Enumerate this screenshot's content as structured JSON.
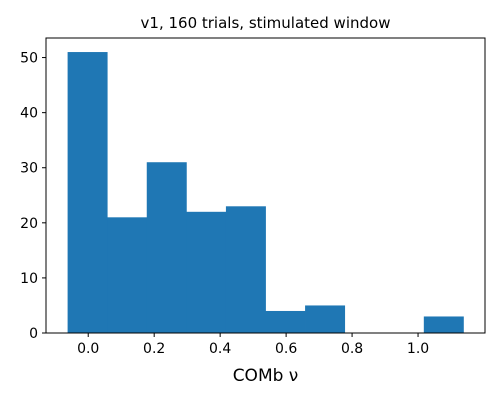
{
  "chart_data": {
    "type": "bar",
    "subtype": "histogram",
    "title": "v1, 160 trials, stimulated window",
    "xlabel": "COMb ν",
    "ylabel": "",
    "bin_edges": [
      -0.0625,
      0.0575,
      0.1775,
      0.2975,
      0.4175,
      0.5375,
      0.6575,
      0.7775,
      0.8975,
      1.0175,
      1.1375
    ],
    "values": [
      51,
      21,
      31,
      22,
      23,
      4,
      5,
      0,
      0,
      3
    ],
    "xlim": [
      -0.128,
      1.203
    ],
    "ylim": [
      0,
      53.55
    ],
    "xticks": [
      0.0,
      0.2,
      0.4,
      0.6,
      0.8,
      1.0
    ],
    "xtick_labels": [
      "0.0",
      "0.2",
      "0.4",
      "0.6",
      "0.8",
      "1.0"
    ],
    "yticks": [
      0,
      10,
      20,
      30,
      40,
      50
    ],
    "ytick_labels": [
      "0",
      "10",
      "20",
      "30",
      "40",
      "50"
    ],
    "bar_color": "#1f77b4",
    "grid": false,
    "legend": "none"
  }
}
